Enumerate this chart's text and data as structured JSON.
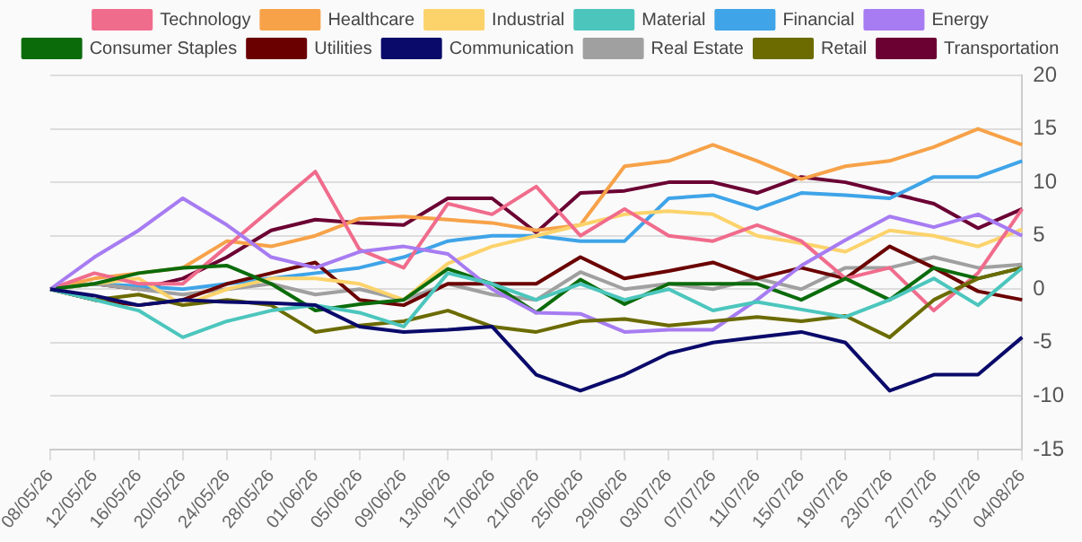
{
  "chart_data": {
    "type": "line",
    "categories": [
      "08/05/26",
      "12/05/26",
      "16/05/26",
      "20/05/26",
      "24/05/26",
      "28/05/26",
      "01/06/26",
      "05/06/26",
      "09/06/26",
      "13/06/26",
      "17/06/26",
      "21/06/26",
      "25/06/26",
      "29/06/26",
      "03/07/26",
      "07/07/26",
      "11/07/26",
      "15/07/26",
      "19/07/26",
      "23/07/26",
      "27/07/26",
      "31/07/26",
      "04/08/26"
    ],
    "series": [
      {
        "name": "Technology",
        "color": "#f06c8c",
        "values": [
          0,
          1.5,
          0.5,
          0.5,
          4,
          7.5,
          11,
          3.7,
          2,
          8,
          7,
          9.6,
          5,
          7.5,
          5,
          4.5,
          6,
          4.5,
          1,
          2,
          -2,
          1.5,
          7.5
        ]
      },
      {
        "name": "Healthcare",
        "color": "#f7a249",
        "values": [
          0,
          1,
          1.5,
          2,
          4.5,
          4,
          5,
          6.6,
          6.8,
          6.5,
          6.2,
          5.5,
          6,
          11.5,
          12,
          13.5,
          12,
          10.3,
          11.5,
          12,
          13.3,
          15,
          13.5
        ]
      },
      {
        "name": "Industrial",
        "color": "#fcd36b",
        "values": [
          0,
          0.5,
          1,
          -1.5,
          0,
          1,
          1,
          0.5,
          -1,
          2.4,
          4,
          5,
          6,
          7,
          7.3,
          7,
          5,
          4.3,
          3.5,
          5.5,
          5,
          4,
          5.6
        ]
      },
      {
        "name": "Material",
        "color": "#4cc6bd",
        "values": [
          0,
          -1,
          -2,
          -4.5,
          -3,
          -2,
          -1.5,
          -2.2,
          -3.5,
          1.5,
          0.5,
          -1,
          0.5,
          -1,
          0,
          -2,
          -1.2,
          -1.9,
          -2.6,
          -1,
          1,
          -1.5,
          2
        ]
      },
      {
        "name": "Financial",
        "color": "#3fa4e8",
        "values": [
          0,
          0.5,
          0.3,
          0,
          0.5,
          1,
          1.5,
          2,
          3,
          4.5,
          5,
          5,
          4.5,
          4.5,
          8.5,
          8.8,
          7.5,
          9,
          8.8,
          8.5,
          10.5,
          10.5,
          12
        ]
      },
      {
        "name": "Energy",
        "color": "#a77cf2",
        "values": [
          0,
          3,
          5.5,
          8.5,
          6,
          3,
          2,
          3.5,
          4,
          3.3,
          0,
          -2.2,
          -2.3,
          -4,
          -3.8,
          -3.8,
          -1,
          2.2,
          4.6,
          6.8,
          5.8,
          7,
          5
        ]
      },
      {
        "name": "Consumer Staples",
        "color": "#0b6b0b",
        "values": [
          0,
          0.5,
          1.5,
          2,
          2.2,
          0.5,
          -2,
          -1.4,
          -1,
          1.9,
          0.5,
          -2.2,
          0.9,
          -1.4,
          0.5,
          0.5,
          0.5,
          -1,
          1,
          -1,
          2,
          1,
          2
        ]
      },
      {
        "name": "Utilities",
        "color": "#6b0000",
        "values": [
          0,
          -1,
          -1.5,
          -1,
          0.5,
          1.5,
          2.5,
          -1,
          -1.5,
          0.5,
          0.5,
          0.5,
          3,
          1,
          1.7,
          2.5,
          1,
          2,
          1,
          4,
          2,
          -0.2,
          -1
        ]
      },
      {
        "name": "Communication",
        "color": "#0a0a6b",
        "values": [
          0,
          -0.6,
          -1.5,
          -1,
          -1.2,
          -1.3,
          -1.5,
          -3.5,
          -4,
          -3.8,
          -3.5,
          -8,
          -9.5,
          -8,
          -6,
          -5,
          -4.5,
          -4,
          -5,
          -9.5,
          -8,
          -8,
          -4.5
        ]
      },
      {
        "name": "Real Estate",
        "color": "#a0a0a0",
        "values": [
          0,
          0.5,
          0,
          -0.5,
          0,
          0.5,
          -0.5,
          0,
          -1,
          0.5,
          -0.5,
          -1,
          1.6,
          0,
          0.5,
          0,
          1,
          0,
          2,
          2,
          3,
          2,
          2.3
        ]
      },
      {
        "name": "Retail",
        "color": "#6b6b00",
        "values": [
          0,
          -1,
          -0.5,
          -1.5,
          -1,
          -1.5,
          -4,
          -3.4,
          -3,
          -2,
          -3.5,
          -4,
          -3,
          -2.8,
          -3.4,
          -3,
          -2.6,
          -3,
          -2.5,
          -4.5,
          -1,
          1,
          2
        ]
      },
      {
        "name": "Transportation",
        "color": "#6b0033",
        "values": [
          0,
          0.5,
          0,
          1,
          3,
          5.5,
          6.5,
          6.2,
          6,
          8.5,
          8.5,
          5.3,
          9,
          9.2,
          10,
          10,
          9,
          10.5,
          10,
          9,
          8,
          5.7,
          7.5
        ]
      }
    ],
    "ylim": [
      -15,
      20
    ],
    "yticks": [
      -15,
      -10,
      -5,
      0,
      5,
      10,
      15,
      20
    ],
    "grid": "y",
    "legend": "top",
    "marker": "none",
    "line_style": "solid"
  }
}
